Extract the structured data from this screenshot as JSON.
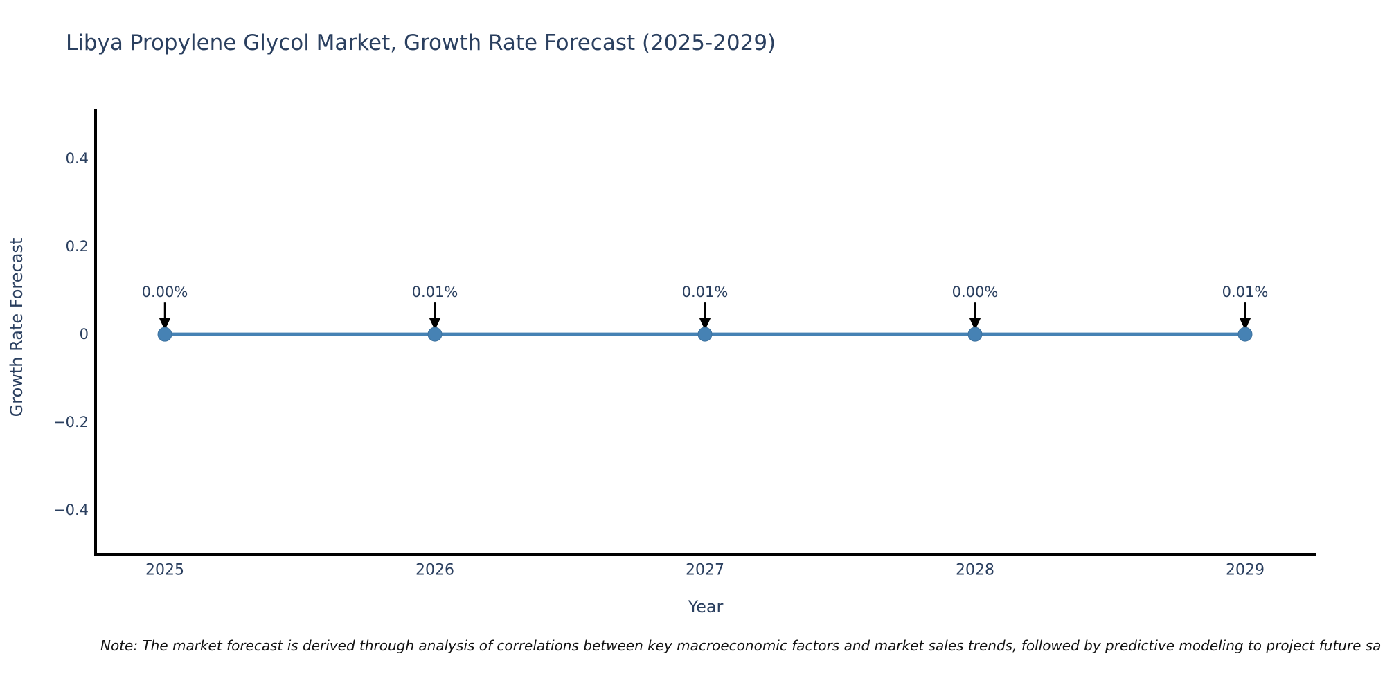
{
  "chart_data": {
    "type": "line",
    "title": "Libya Propylene Glycol Market, Growth Rate Forecast (2025-2029)",
    "xlabel": "Year",
    "ylabel": "Growth Rate Forecast",
    "categories": [
      "2025",
      "2026",
      "2027",
      "2028",
      "2029"
    ],
    "series": [
      {
        "name": "Growth Rate Forecast",
        "values_percent": [
          0.0,
          0.01,
          0.01,
          0.0,
          0.01
        ],
        "point_labels": [
          "0.00%",
          "0.01%",
          "0.01%",
          "0.00%",
          "0.01%"
        ]
      }
    ],
    "y_ticks": [
      {
        "value": 0.4,
        "label": "0.4"
      },
      {
        "value": 0.2,
        "label": "0.2"
      },
      {
        "value": 0,
        "label": "0"
      },
      {
        "value": -0.2,
        "label": "−0.2"
      },
      {
        "value": -0.4,
        "label": "−0.4"
      }
    ],
    "ylim": [
      -0.499,
      0.509
    ],
    "grid": false,
    "legend_position": "none",
    "annotation_style": "arrow-down",
    "colors": {
      "line": "#4682b4",
      "marker": "#4682b4",
      "marker_edge": "#3d729f",
      "axis_line": "#000000",
      "text": "#2a3f5f",
      "note_text": "#111111",
      "arrow": "#000000",
      "background": "#ffffff"
    },
    "note": "Note: The market forecast is derived through analysis of correlations between key macroeconomic factors and market sales trends, followed by predictive modeling to project future sa"
  }
}
